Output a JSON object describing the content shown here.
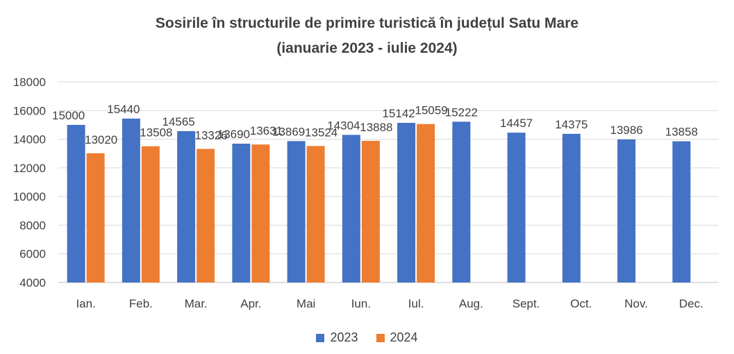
{
  "title_line1": "Sosirile în structurile de primire turistică în județul Satu Mare",
  "title_line2": "(ianuarie 2023 - iulie 2024)",
  "colors": {
    "s2023": "#4472C4",
    "s2024": "#ED7D31",
    "grid": "#D9D9D9",
    "axis": "#404040"
  },
  "chart_data": {
    "type": "bar",
    "title": "Sosirile în structurile de primire turistică în județul Satu Mare (ianuarie 2023 - iulie 2024)",
    "categories": [
      "Ian.",
      "Feb.",
      "Mar.",
      "Apr.",
      "Mai",
      "Iun.",
      "Iul.",
      "Aug.",
      "Sept.",
      "Oct.",
      "Nov.",
      "Dec."
    ],
    "series": [
      {
        "name": "2023",
        "values": [
          15000,
          15440,
          14565,
          13690,
          13869,
          14304,
          15142,
          15222,
          14457,
          14375,
          13986,
          13858
        ]
      },
      {
        "name": "2024",
        "values": [
          13020,
          13508,
          13326,
          13631,
          13524,
          13888,
          15059,
          null,
          null,
          null,
          null,
          null
        ]
      }
    ],
    "ylim": [
      4000,
      18000
    ],
    "yticks": [
      4000,
      6000,
      8000,
      10000,
      12000,
      14000,
      16000,
      18000
    ],
    "grid": true,
    "legend": "bottom"
  }
}
